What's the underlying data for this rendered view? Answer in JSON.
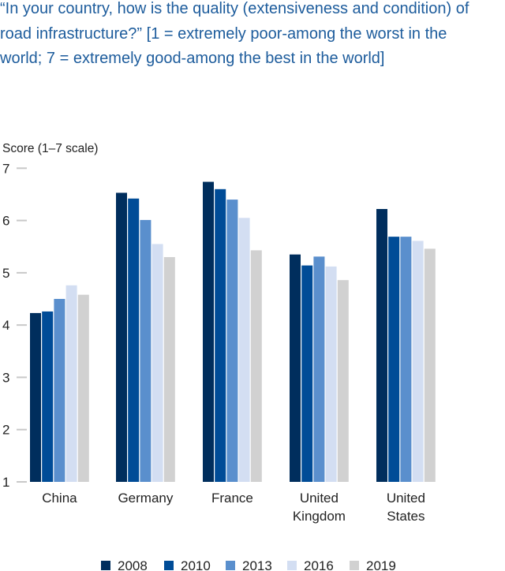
{
  "chart_data": {
    "type": "bar",
    "title": "“In your country, how is the quality (extensiveness and condition) of road infrastructure?” [1 = extremely poor-among the worst in the world; 7 = extremely good-among the best in the world]",
    "ylabel": "Score (1–7 scale)",
    "ylim": [
      1,
      7
    ],
    "yticks": [
      1,
      2,
      3,
      4,
      5,
      6,
      7
    ],
    "categories": [
      [
        "China"
      ],
      [
        "Germany"
      ],
      [
        "France"
      ],
      [
        "United",
        "Kingdom"
      ],
      [
        "United",
        "States"
      ]
    ],
    "series": [
      {
        "name": "2008",
        "color": "#002e5d",
        "values": [
          4.23,
          6.53,
          6.74,
          5.35,
          6.22
        ]
      },
      {
        "name": "2010",
        "color": "#004c97",
        "values": [
          4.26,
          6.42,
          6.6,
          5.14,
          5.69
        ]
      },
      {
        "name": "2013",
        "color": "#5a8fcd",
        "values": [
          4.5,
          6.01,
          6.4,
          5.31,
          5.69
        ]
      },
      {
        "name": "2016",
        "color": "#d3def2",
        "values": [
          4.76,
          5.55,
          6.05,
          5.12,
          5.61
        ]
      },
      {
        "name": "2019",
        "color": "#d1d1d1",
        "values": [
          4.58,
          5.3,
          5.43,
          4.86,
          5.46
        ]
      }
    ],
    "grid": false,
    "legend": "bottom"
  }
}
